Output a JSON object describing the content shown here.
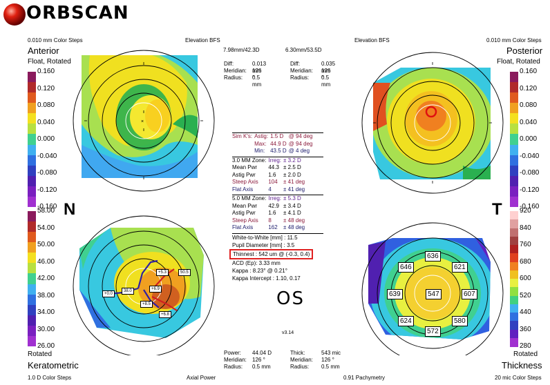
{
  "brand": {
    "logo_text": "ORBSCAN"
  },
  "quadrants": {
    "top_left": {
      "steps": "0.010 mm Color Steps",
      "map_label": "Elevation BFS",
      "title": "Anterior",
      "subtitle": "Float, Rotated",
      "bfs": "7.98mm/42.3D",
      "diff_label": "Diff:",
      "diff_value": "0.013 mm",
      "meridian_label": "Meridian:",
      "meridian_value": "126 °",
      "radius_label": "Radius:",
      "radius_value": "0.5 mm"
    },
    "top_right": {
      "steps": "0.010 mm Color Steps",
      "map_label": "Elevation BFS",
      "title": "Posterior",
      "subtitle": "Float, Rotated",
      "bfs": "6.30mm/53.5D",
      "diff_label": "Diff:",
      "diff_value": "0.035 mm",
      "meridian_label": "Meridian:",
      "meridian_value": "126 °",
      "radius_label": "Radius:",
      "radius_value": "0.5 mm"
    },
    "bottom_left": {
      "steps": "1.0 D Color Steps",
      "map_label": "Axial Power",
      "title": "Keratometric",
      "subtitle": "Rotated",
      "power_label": "Power:",
      "power_value": "44.04 D",
      "meridian_label": "Meridian:",
      "meridian_value": "126 °",
      "radius_label": "Radius:",
      "radius_value": "0.5 mm"
    },
    "bottom_right": {
      "steps": "20 mic Color Steps",
      "map_label": "0.91 Pachymetry",
      "title": "Thickness",
      "subtitle": "Rotated",
      "thick_label": "Thick:",
      "thick_value": "543 mic",
      "meridian_label": "Meridian:",
      "meridian_value": "126 °",
      "radius_label": "Radius:",
      "radius_value": "0.5 mm"
    }
  },
  "orientation": {
    "left": "N",
    "right": "T",
    "eye": "OS"
  },
  "scales": {
    "elevation_left": [
      "0.160",
      "0.120",
      "0.080",
      "0.040",
      "0.000",
      "-0.040",
      "-0.080",
      "-0.120",
      "-0.160"
    ],
    "elevation_right": [
      "0.160",
      "0.120",
      "0.080",
      "0.040",
      "0.000",
      "-0.040",
      "-0.080",
      "-0.120",
      "-0.160"
    ],
    "keratometric": [
      "58.00",
      "54.00",
      "50.00",
      "46.00",
      "42.00",
      "38.00",
      "34.00",
      "30.00",
      "26.00"
    ],
    "thickness": [
      "920",
      "840",
      "760",
      "680",
      "600",
      "520",
      "440",
      "360",
      "280"
    ],
    "elevation_colors": [
      "#8a1a5c",
      "#b02a2a",
      "#e05a1e",
      "#f0a020",
      "#f4e020",
      "#b8e040",
      "#40d090",
      "#40b0f0",
      "#3070e0",
      "#3040c0",
      "#5020b0",
      "#7a20c0",
      "#a030d0"
    ],
    "thickness_colors": [
      "#ffd0d0",
      "#e0a0a0",
      "#c07070",
      "#a04040",
      "#b02020",
      "#e04020",
      "#f08020",
      "#f0c020",
      "#e8f040",
      "#90e040",
      "#40d080",
      "#40b0f0",
      "#3070e0",
      "#3040c0",
      "#6020c0",
      "#a030d0"
    ]
  },
  "stats": {
    "simk": [
      {
        "label": "Sim K's:",
        "key": "Astig:",
        "value": "1.5 D",
        "deg": "@ 94 deg"
      },
      {
        "label": "",
        "key": "Max:",
        "value": "44.9 D",
        "deg": "@ 94 deg"
      },
      {
        "label": "",
        "key": "Min:",
        "value": "43.5 D",
        "deg": "@ 4 deg"
      }
    ],
    "zone3": [
      {
        "a": "3.0 MM Zone:",
        "b": "Irreg:",
        "c": "± 3.2 D"
      },
      {
        "a": "Mean Pwr",
        "b": "44.3",
        "c": "± 2.5 D"
      },
      {
        "a": "Astig Pwr",
        "b": "1.6",
        "c": "± 2.0 D"
      },
      {
        "a": "Steep Axis",
        "b": "104",
        "c": "± 41 deg"
      },
      {
        "a": "Flat Axis",
        "b": "4",
        "c": "± 41 deg"
      }
    ],
    "zone5": [
      {
        "a": "5.0 MM Zone:",
        "b": "Irreg:",
        "c": "± 5.3 D"
      },
      {
        "a": "Mean Pwr",
        "b": "42.9",
        "c": "± 3.4 D"
      },
      {
        "a": "Astig Pwr",
        "b": "1.6",
        "c": "± 4.1 D"
      },
      {
        "a": "Steep Axis",
        "b": "8",
        "c": "± 48 deg"
      },
      {
        "a": "Flat Axis",
        "b": "162",
        "c": "± 48 deg"
      }
    ],
    "misc": {
      "wtw": "White-to-White [mm] : 11.5",
      "pupil": "Pupil Diameter [mm] : 3.5",
      "thinnest": "Thinnest : 542 um @ (-0.3, 0.4)",
      "acd": "ACD (Ep): 3.33 mm",
      "kappa": "Kappa : 8.23° @ 0.21°",
      "kappa_intercept": "Kappa Intercept : 1.10, 0.17",
      "version": "v3.14"
    }
  },
  "thickness_points": [
    "636",
    "646",
    "621",
    "639",
    "547",
    "607",
    "624",
    "580",
    "572"
  ],
  "keratometric_marks": [
    "+5.3",
    "50.5",
    "38.0",
    "+0.0",
    "+6.9",
    "+8.5",
    "+6.8"
  ]
}
